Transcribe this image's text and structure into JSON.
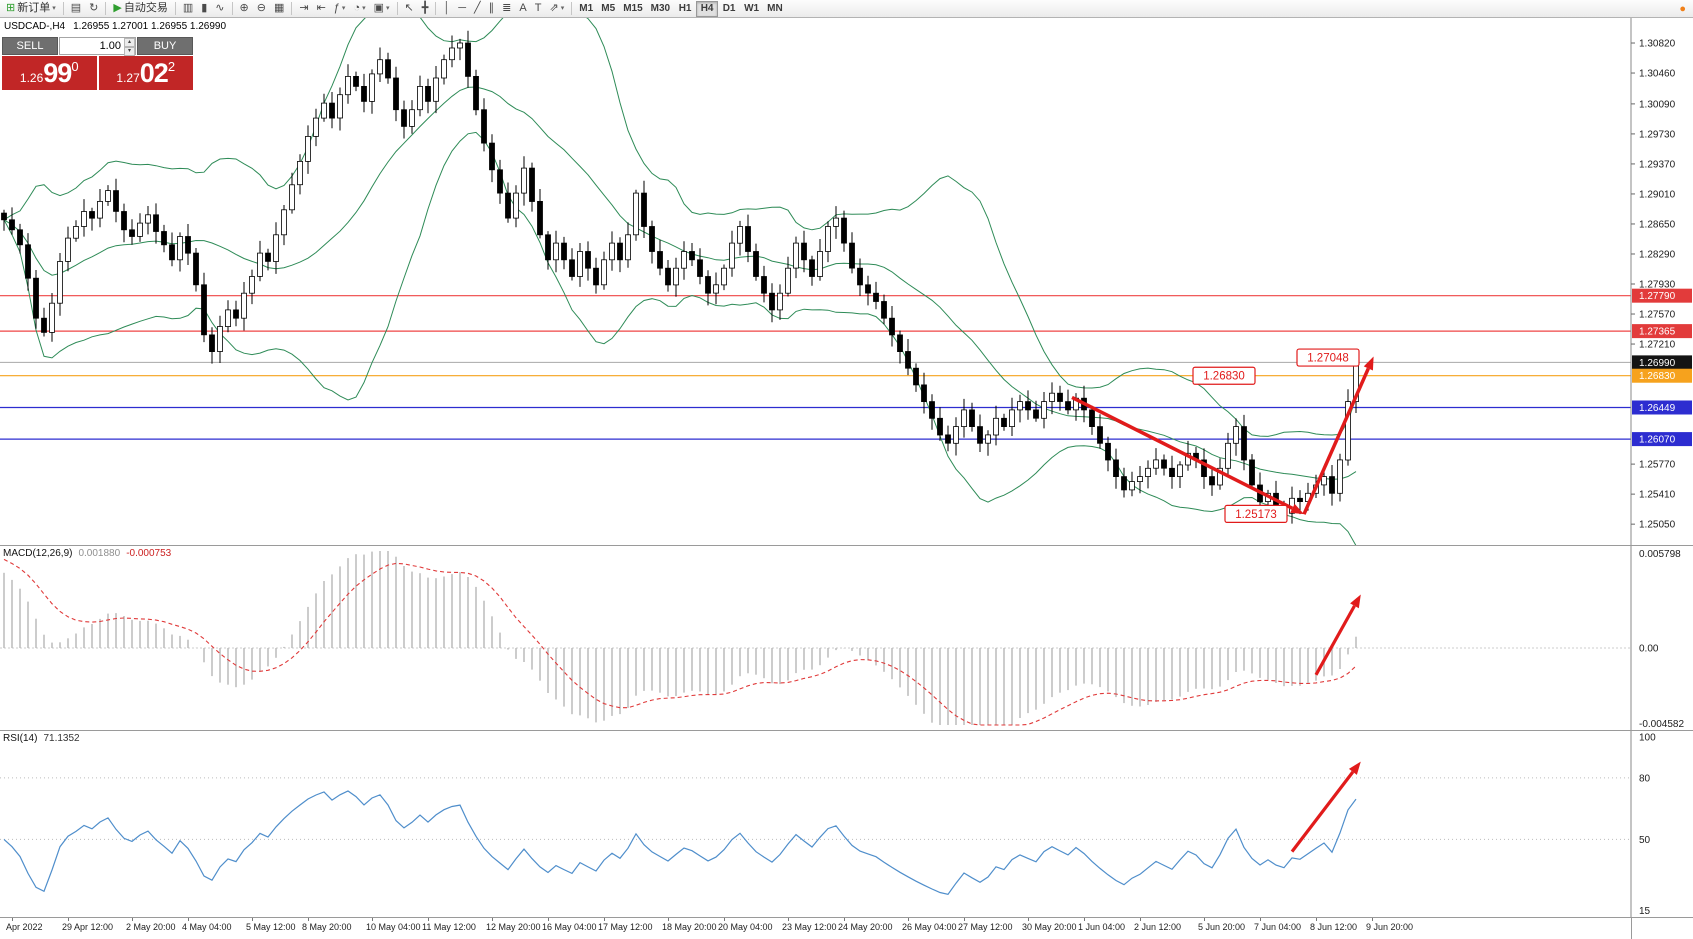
{
  "ui_glyphs": {
    "caret_down": "▾",
    "spinner_up": "▴",
    "spinner_down": "▾"
  },
  "colors": {
    "arrow": "#e11b1b",
    "band": "#2e8b57",
    "candle_up": "#ffffff",
    "candle_down": "#000000",
    "wick": "#000000",
    "macd_histogram": "#b6b6b6",
    "macd_signal": "#e03a3a",
    "rsi_line": "#4f8ecb",
    "current_price_line": "#a8a8a8",
    "trade_red": "#c12626"
  },
  "toolbar": {
    "groups": [
      {
        "items": [
          {
            "name": "new-order",
            "glyph": "⊞",
            "color": "#2f9e2f",
            "label": "新订单",
            "caret": true
          }
        ]
      },
      {
        "items": [
          {
            "name": "chart-profiles",
            "glyph": "▤"
          },
          {
            "name": "refresh",
            "glyph": "↻"
          }
        ]
      },
      {
        "items": [
          {
            "name": "autotrading",
            "glyph": "▶",
            "color": "#2f9e2f",
            "label": "自动交易"
          }
        ]
      },
      {
        "items": [
          {
            "name": "bar-chart",
            "glyph": "▥"
          },
          {
            "name": "candlestick-chart",
            "glyph": "▮"
          },
          {
            "name": "line-chart",
            "glyph": "∿"
          }
        ]
      },
      {
        "items": [
          {
            "name": "zoom-in",
            "glyph": "⊕"
          },
          {
            "name": "zoom-out",
            "glyph": "⊖"
          },
          {
            "name": "tile-windows",
            "glyph": "▦"
          }
        ]
      },
      {
        "items": [
          {
            "name": "auto-scroll",
            "glyph": "⇥"
          },
          {
            "name": "chart-shift",
            "glyph": "⇤"
          },
          {
            "name": "indicators",
            "glyph": "ƒ",
            "caret": true
          },
          {
            "name": "periods",
            "glyph": "◔",
            "caret": true
          },
          {
            "name": "templates",
            "glyph": "▣",
            "caret": true
          }
        ]
      },
      {
        "items": [
          {
            "name": "cursor",
            "glyph": "↖"
          },
          {
            "name": "crosshair",
            "glyph": "╋"
          }
        ]
      },
      {
        "items": [
          {
            "name": "vertical-line",
            "glyph": "│"
          },
          {
            "name": "horizontal-line",
            "glyph": "─"
          },
          {
            "name": "trendline",
            "glyph": "╱"
          },
          {
            "name": "equidistant-channel",
            "glyph": "∥"
          },
          {
            "name": "fibonacci-retracement",
            "glyph": "≣"
          },
          {
            "name": "text",
            "glyph": "A"
          },
          {
            "name": "text-label",
            "glyph": "T"
          },
          {
            "name": "arrow-tools",
            "glyph": "⇗",
            "caret": true
          }
        ]
      }
    ],
    "timeframes": [
      "M1",
      "M5",
      "M15",
      "M30",
      "H1",
      "H4",
      "D1",
      "W1",
      "MN"
    ],
    "active_timeframe": "H4",
    "right_icon": {
      "name": "notifications",
      "glyph": "●",
      "color": "#f08019"
    }
  },
  "chart": {
    "title": "USDCAD-,H4",
    "ohlc": "1.26955 1.27001 1.26955 1.26990",
    "current_price": {
      "value": 1.2699,
      "label": "1.26990"
    }
  },
  "trade_panel": {
    "sell_label": "SELL",
    "buy_label": "BUY",
    "volume": "1.00",
    "sell_price": {
      "base": "1.26",
      "pips": "99",
      "point": "0"
    },
    "buy_price": {
      "base": "1.27",
      "pips": "02",
      "point": "2"
    }
  },
  "levels": [
    {
      "price": 1.2779,
      "color": "#ef4545"
    },
    {
      "price": 1.27365,
      "color": "#ef4545"
    },
    {
      "price": 1.2683,
      "color": "#f6a21d"
    },
    {
      "price": 1.26449,
      "color": "#2d2dd0"
    },
    {
      "price": 1.2607,
      "color": "#2d2dd0"
    }
  ],
  "price_axis": {
    "ticks": [
      "1.30820",
      "1.30460",
      "1.30090",
      "1.29730",
      "1.29370",
      "1.29010",
      "1.28650",
      "1.28290",
      "1.27930",
      "1.27570",
      "1.27210",
      "1.25770",
      "1.25410",
      "1.25050"
    ],
    "badges": [
      {
        "value": "1.27790",
        "color": "#e23b3b"
      },
      {
        "value": "1.27365",
        "color": "#e23b3b"
      },
      {
        "value": "1.26990",
        "color": "#141414"
      },
      {
        "value": "1.26830",
        "color": "#f6a21d"
      },
      {
        "value": "1.26449",
        "color": "#2d2dd0"
      },
      {
        "value": "1.26070",
        "color": "#2d2dd0"
      }
    ]
  },
  "macd": {
    "name": "MACD(12,26,9)",
    "value_main": "0.001880",
    "value_signal": "-0.000753",
    "axis": [
      "0.005798",
      "0.00",
      "-0.004582"
    ],
    "vmax": 0.0058,
    "vmin": -0.0046
  },
  "rsi": {
    "name": "RSI(14)",
    "value": "71.1352",
    "axis_levels": [
      100,
      80,
      50,
      15
    ],
    "dotted_levels": [
      80,
      50
    ]
  },
  "annotations": {
    "price_labels": [
      {
        "text": "1.27048",
        "i": 165.5,
        "p": 1.27048
      },
      {
        "text": "1.26830",
        "i": 152.5,
        "p": 1.2683
      },
      {
        "text": "1.25173",
        "i": 156.5,
        "p": 1.25173
      }
    ],
    "main_arrows": [
      {
        "i1": 133.5,
        "p1": 1.2657,
        "i2": 162.5,
        "p2": 1.2517
      },
      {
        "i1": 162.5,
        "p1": 1.2517,
        "i2": 171.2,
        "p2": 1.2706
      }
    ],
    "macd_arrow": {
      "i1": 164.0,
      "v1": -0.0016,
      "i2": 169.6,
      "v2": 0.0032
    },
    "rsi_arrow": {
      "i1": 161.0,
      "v1": 44,
      "i2": 169.6,
      "v2": 88
    }
  },
  "time_axis": [
    {
      "t": "Apr 2022",
      "i": 1
    },
    {
      "t": "29 Apr 12:00",
      "i": 8
    },
    {
      "t": "2 May 20:00",
      "i": 16
    },
    {
      "t": "4 May 04:00",
      "i": 23
    },
    {
      "t": "5 May 12:00",
      "i": 31
    },
    {
      "t": "8 May 20:00",
      "i": 38
    },
    {
      "t": "10 May 04:00",
      "i": 46
    },
    {
      "t": "11 May 12:00",
      "i": 53
    },
    {
      "t": "12 May 20:00",
      "i": 61
    },
    {
      "t": "16 May 04:00",
      "i": 68
    },
    {
      "t": "17 May 12:00",
      "i": 75
    },
    {
      "t": "18 May 20:00",
      "i": 83
    },
    {
      "t": "20 May 04:00",
      "i": 90
    },
    {
      "t": "23 May 12:00",
      "i": 98
    },
    {
      "t": "24 May 20:00",
      "i": 105
    },
    {
      "t": "26 May 04:00",
      "i": 113
    },
    {
      "t": "27 May 12:00",
      "i": 120
    },
    {
      "t": "30 May 20:00",
      "i": 128
    },
    {
      "t": "1 Jun 04:00",
      "i": 135
    },
    {
      "t": "2 Jun 12:00",
      "i": 142
    },
    {
      "t": "5 Jun 20:00",
      "i": 150
    },
    {
      "t": "7 Jun 04:00",
      "i": 157
    },
    {
      "t": "8 Jun 12:00",
      "i": 164
    },
    {
      "t": "9 Jun 20:00",
      "i": 171
    }
  ],
  "chart_data": {
    "type": "candlestick",
    "symbol": "USDCAD",
    "timeframe": "H4",
    "indicators": [
      "Bollinger Bands (20,2)",
      "MACD(12,26,9)",
      "RSI(14)"
    ],
    "ylim": [
      1.248,
      1.3112
    ],
    "closes": [
      1.287,
      1.2858,
      1.284,
      1.28,
      1.2752,
      1.2735,
      1.277,
      1.282,
      1.2848,
      1.2862,
      1.288,
      1.2872,
      1.2892,
      1.2905,
      1.288,
      1.2858,
      1.285,
      1.2866,
      1.2876,
      1.2856,
      1.284,
      1.2822,
      1.285,
      1.283,
      1.2792,
      1.2732,
      1.2712,
      1.2742,
      1.2762,
      1.2752,
      1.2782,
      1.2802,
      1.283,
      1.282,
      1.2852,
      1.2882,
      1.2912,
      1.294,
      1.297,
      1.2992,
      1.301,
      1.2992,
      1.302,
      1.3042,
      1.303,
      1.3012,
      1.3045,
      1.3062,
      1.304,
      1.3002,
      1.2982,
      1.3002,
      1.303,
      1.3012,
      1.304,
      1.3062,
      1.3076,
      1.3082,
      1.3042,
      1.3002,
      1.2962,
      1.293,
      1.2902,
      1.2872,
      1.2902,
      1.2932,
      1.2892,
      1.2852,
      1.2822,
      1.2842,
      1.2822,
      1.2802,
      1.2832,
      1.2812,
      1.2792,
      1.2822,
      1.2842,
      1.2822,
      1.2852,
      1.2902,
      1.2862,
      1.2832,
      1.2812,
      1.2792,
      1.2812,
      1.2832,
      1.2822,
      1.2802,
      1.2782,
      1.2792,
      1.2812,
      1.2842,
      1.2862,
      1.2832,
      1.2802,
      1.2782,
      1.2762,
      1.2782,
      1.2812,
      1.2842,
      1.2822,
      1.2802,
      1.2832,
      1.2862,
      1.2872,
      1.2842,
      1.2812,
      1.2792,
      1.2782,
      1.2772,
      1.2752,
      1.2732,
      1.2712,
      1.2692,
      1.2672,
      1.2652,
      1.2632,
      1.2612,
      1.2602,
      1.2622,
      1.2642,
      1.2622,
      1.2602,
      1.2612,
      1.2632,
      1.2622,
      1.2642,
      1.2652,
      1.2642,
      1.2632,
      1.2652,
      1.2662,
      1.2652,
      1.2642,
      1.2656,
      1.2642,
      1.2622,
      1.2602,
      1.2582,
      1.2562,
      1.2546,
      1.2556,
      1.2562,
      1.2572,
      1.2582,
      1.2572,
      1.2562,
      1.2576,
      1.259,
      1.2582,
      1.2562,
      1.2552,
      1.2572,
      1.2602,
      1.2622,
      1.2582,
      1.2552,
      1.2532,
      1.2542,
      1.2526,
      1.2518,
      1.2536,
      1.2532,
      1.2542,
      1.2552,
      1.2562,
      1.2542,
      1.2582,
      1.2652,
      1.2699
    ]
  }
}
